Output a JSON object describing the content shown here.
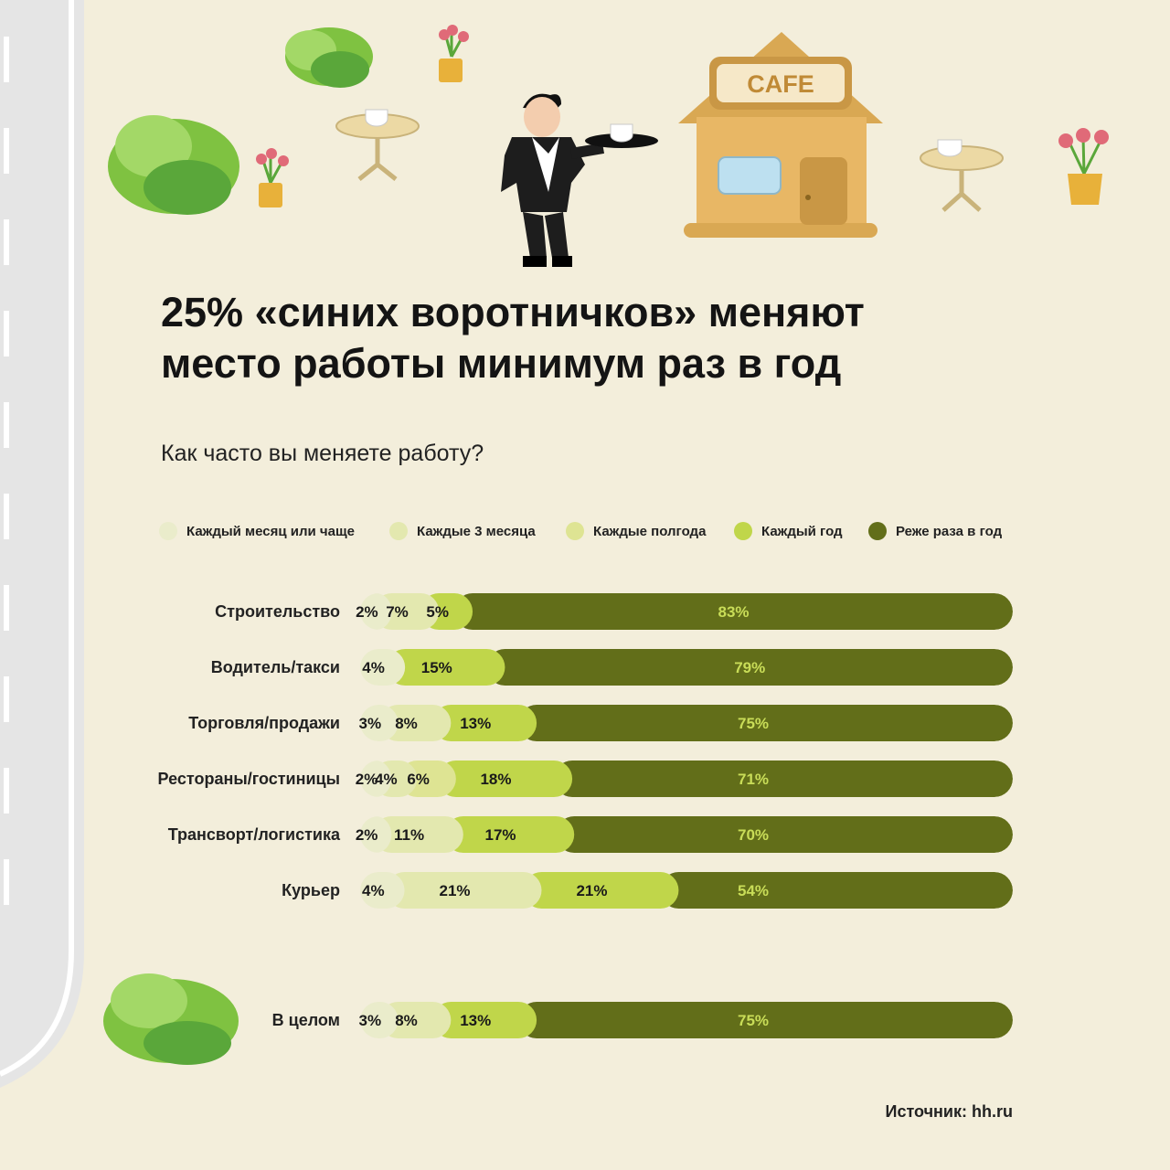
{
  "title_line1": "25% «синих воротничков» меняют",
  "title_line2": "место работы минимум раз в год",
  "question": "Как часто вы меняете работу?",
  "source": "Источник: hh.ru",
  "cafe_sign": "CAFE",
  "colors": {
    "background": "#f3eedb",
    "seg1": "#eaeccb",
    "seg2": "#e3e8af",
    "seg3": "#dee493",
    "seg4": "#c0d64a",
    "seg5": "#626e19",
    "label_on_dark": "#c9dd58"
  },
  "chart_data": {
    "type": "bar",
    "orientation": "horizontal",
    "stacked": true,
    "normalized": true,
    "title": "Как часто вы меняете работу?",
    "legend_position": "top",
    "series": [
      {
        "name": "Каждый месяц или чаще",
        "color": "#eaeccb",
        "values": [
          2,
          4,
          3,
          2,
          2,
          4,
          3
        ]
      },
      {
        "name": "Каждые 3 месяца",
        "color": "#e3e8af",
        "values": [
          7,
          null,
          8,
          4,
          11,
          21,
          8
        ]
      },
      {
        "name": "Каждые полгода",
        "color": "#dee493",
        "values": [
          null,
          null,
          null,
          6,
          null,
          null,
          null
        ]
      },
      {
        "name": "Каждый год",
        "color": "#c0d64a",
        "values": [
          5,
          15,
          13,
          18,
          17,
          21,
          13
        ]
      },
      {
        "name": "Реже раза в год",
        "color": "#626e19",
        "values": [
          83,
          79,
          75,
          71,
          70,
          54,
          75
        ]
      }
    ],
    "categories": [
      "Строительство",
      "Водитель/такси",
      "Торговля/продажи",
      "Рестораны/гостиницы",
      "Трансворт/логистика",
      "Курьер",
      "В целом"
    ]
  }
}
